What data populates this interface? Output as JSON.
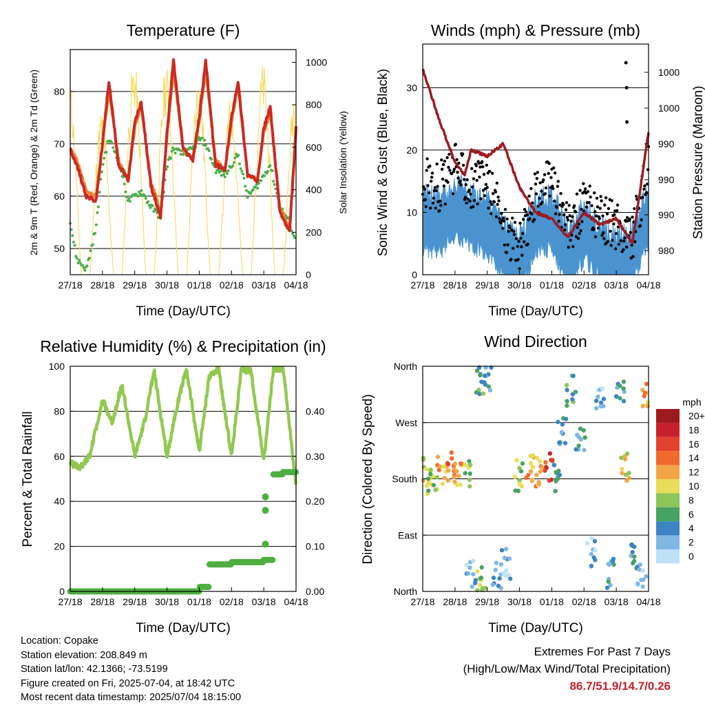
{
  "days": [
    "27/18",
    "28/18",
    "29/18",
    "30/18",
    "01/18",
    "02/18",
    "03/18",
    "04/18"
  ],
  "xlabel": "Time (Day/UTC)",
  "panels": {
    "temp": {
      "title": "Temperature (F)",
      "ylabel_left": "2m & 9m T (Red, Orange) & 2m Td (Green)",
      "ylabel_right": "Solar Insolation (Yellow)",
      "yticks_left": [
        "50",
        "60",
        "70",
        "80"
      ],
      "yticks_right": [
        "0",
        "200",
        "400",
        "600",
        "800",
        "1000"
      ]
    },
    "wind": {
      "title": "Winds (mph) & Pressure (mb)",
      "ylabel_left": "Sonic Wind & Gust (Blue, Black)",
      "ylabel_right": "Station Pressure (Maroon)",
      "yticks_left": [
        "0",
        "10",
        "20",
        "30"
      ],
      "yticks_right": [
        "980",
        "990",
        "990",
        "990",
        "1000",
        "1000"
      ]
    },
    "rh": {
      "title": "Relative Humidity (%) & Precipitation (in)",
      "ylabel_left": "Percent & Total Rainfall",
      "yticks_left": [
        "0",
        "20",
        "40",
        "60",
        "80",
        "100"
      ],
      "yticks_right": [
        "0.00",
        "0.10",
        "0.20",
        "0.30",
        "0.40"
      ]
    },
    "dir": {
      "title": "Wind Direction",
      "ylabel_left": "Direction (Colored By Speed)",
      "yticks_left": [
        "North",
        "East",
        "South",
        "West",
        "North"
      ],
      "legend_title": "mph",
      "legend_labels": [
        "20+",
        "18",
        "16",
        "14",
        "12",
        "10",
        "8",
        "6",
        "4",
        "2",
        "0"
      ],
      "legend_colors": [
        "#9e1a1f",
        "#c8202a",
        "#e2412c",
        "#f06a2e",
        "#f4a646",
        "#e7dd58",
        "#8cc55a",
        "#47a264",
        "#3d84c2",
        "#7fb7e2",
        "#bfe1f7"
      ]
    }
  },
  "chart_data": [
    {
      "type": "line",
      "title": "Temperature (F)",
      "xlabel": "Time (Day/UTC)",
      "ylabel": "2m & 9m T (Red, Orange) & 2m Td (Green)",
      "y2label": "Solar Insolation (Yellow)",
      "ylim": [
        45,
        88
      ],
      "y2lim": [
        0,
        1060
      ],
      "x": [
        0,
        0.2,
        0.5,
        0.8,
        1.0,
        1.2,
        1.5,
        1.8,
        2.0,
        2.2,
        2.5,
        2.8,
        3.0,
        3.2,
        3.5,
        3.8,
        4.0,
        4.2,
        4.5,
        4.8,
        5.0,
        5.2,
        5.5,
        5.8,
        6.0,
        6.2,
        6.5,
        6.8,
        7.0
      ],
      "series": [
        {
          "name": "2m T",
          "values": [
            69,
            66,
            60,
            59,
            70,
            82,
            66,
            63,
            74,
            78,
            62,
            56,
            72,
            86,
            69,
            67,
            75,
            86,
            66,
            65,
            75,
            82,
            64,
            63,
            73,
            77,
            57,
            53,
            73
          ]
        },
        {
          "name": "9m T",
          "values": [
            69,
            67,
            61,
            60,
            70,
            80,
            67,
            63,
            73,
            77,
            63,
            57,
            71,
            84,
            69,
            67,
            74,
            84,
            67,
            65,
            74,
            81,
            64,
            63,
            72,
            76,
            58,
            54,
            72
          ]
        },
        {
          "name": "2m Td",
          "values": [
            55,
            48,
            46,
            54,
            66,
            71,
            67,
            59,
            60,
            61,
            58,
            56,
            66,
            69,
            68,
            69,
            71,
            70,
            65,
            64,
            66,
            68,
            60,
            62,
            64,
            66,
            58,
            55,
            51
          ]
        },
        {
          "name": "Solar Insolation",
          "peaks": [
            930,
            780,
            1020,
            1000,
            960,
            840,
            1000,
            920
          ]
        }
      ]
    },
    {
      "type": "line",
      "title": "Winds (mph) & Pressure (mb)",
      "xlabel": "Time (Day/UTC)",
      "ylabel": "Sonic Wind & Gust (Blue, Black)",
      "y2label": "Station Pressure (Maroon)",
      "ylim": [
        0,
        37
      ],
      "x": [
        0,
        0.5,
        1.0,
        1.3,
        1.5,
        2.0,
        2.5,
        3.0,
        3.5,
        4.0,
        4.5,
        5.0,
        5.5,
        6.0,
        6.5,
        7.0
      ],
      "series": [
        {
          "name": "Wind",
          "values": [
            9,
            8,
            11,
            10,
            9,
            8,
            4,
            2,
            8,
            9,
            3,
            7,
            4,
            2,
            3,
            10
          ]
        },
        {
          "name": "Gust",
          "values": [
            15,
            14,
            17,
            16,
            14,
            15,
            8,
            4,
            13,
            15,
            7,
            11,
            9,
            8,
            6,
            17
          ]
        },
        {
          "name": "Station Pressure",
          "values": [
            33,
            25,
            18,
            16,
            20,
            19,
            21,
            14,
            10,
            9,
            6,
            10,
            8,
            9,
            5,
            23
          ]
        }
      ]
    },
    {
      "type": "line",
      "title": "Relative Humidity (%) & Precipitation (in)",
      "xlabel": "Time (Day/UTC)",
      "ylabel": "Percent & Total Rainfall",
      "ylim": [
        0,
        100
      ],
      "y2lim": [
        0,
        0.5
      ],
      "x": [
        0,
        0.3,
        0.6,
        1.0,
        1.3,
        1.6,
        2.0,
        2.3,
        2.6,
        3.0,
        3.3,
        3.6,
        4.0,
        4.3,
        4.6,
        5.0,
        5.3,
        5.6,
        6.0,
        6.3,
        6.6,
        7.0
      ],
      "series": [
        {
          "name": "Relative Humidity",
          "values": [
            57,
            55,
            60,
            85,
            75,
            92,
            60,
            75,
            98,
            60,
            82,
            99,
            62,
            95,
            99,
            60,
            98,
            98,
            58,
            99,
            99,
            47
          ]
        },
        {
          "name": "Total Precipitation",
          "values": [
            0,
            0,
            0,
            0,
            0,
            0,
            0,
            0,
            0,
            0,
            0,
            0,
            0.01,
            0.06,
            0.06,
            0.065,
            0.065,
            0.065,
            0.07,
            0.26,
            0.265,
            0.265
          ]
        }
      ]
    },
    {
      "type": "scatter",
      "title": "Wind Direction",
      "xlabel": "Time (Day/UTC)",
      "ylabel": "Direction (Colored By Speed)",
      "ylim": [
        0,
        360
      ],
      "points": [
        {
          "x": 0.1,
          "y": 190,
          "speed": 10
        },
        {
          "x": 0.3,
          "y": 180,
          "speed": 8
        },
        {
          "x": 0.6,
          "y": 195,
          "speed": 12
        },
        {
          "x": 0.9,
          "y": 200,
          "speed": 14
        },
        {
          "x": 1.1,
          "y": 190,
          "speed": 12
        },
        {
          "x": 1.4,
          "y": 185,
          "speed": 8
        },
        {
          "x": 1.5,
          "y": 30,
          "speed": 2
        },
        {
          "x": 1.8,
          "y": 15,
          "speed": 8
        },
        {
          "x": 1.8,
          "y": 340,
          "speed": 6
        },
        {
          "x": 2.0,
          "y": 345,
          "speed": 4
        },
        {
          "x": 2.3,
          "y": 30,
          "speed": 2
        },
        {
          "x": 2.6,
          "y": 45,
          "speed": 2
        },
        {
          "x": 3.0,
          "y": 185,
          "speed": 8
        },
        {
          "x": 3.3,
          "y": 195,
          "speed": 12
        },
        {
          "x": 3.6,
          "y": 190,
          "speed": 12
        },
        {
          "x": 3.9,
          "y": 200,
          "speed": 16
        },
        {
          "x": 4.1,
          "y": 180,
          "speed": 6
        },
        {
          "x": 4.3,
          "y": 260,
          "speed": 4
        },
        {
          "x": 4.6,
          "y": 320,
          "speed": 6
        },
        {
          "x": 4.9,
          "y": 240,
          "speed": 4
        },
        {
          "x": 5.2,
          "y": 60,
          "speed": 2
        },
        {
          "x": 5.5,
          "y": 300,
          "speed": 2
        },
        {
          "x": 5.8,
          "y": 30,
          "speed": 4
        },
        {
          "x": 6.1,
          "y": 320,
          "speed": 4
        },
        {
          "x": 6.3,
          "y": 200,
          "speed": 10
        },
        {
          "x": 6.5,
          "y": 60,
          "speed": 4
        },
        {
          "x": 6.8,
          "y": 20,
          "speed": 2
        },
        {
          "x": 6.95,
          "y": 320,
          "speed": 12
        }
      ]
    }
  ],
  "info": {
    "location": "Location: Copake",
    "elevation": "Station elevation: 208.849 m",
    "latlon": "Station lat/lon: 42.1366; -73.5199",
    "created": "Figure created on Fri, 2025-07-04, at 18:42 UTC",
    "recent": "Most recent data timestamp: 2025/07/04 18:15:00"
  },
  "extremes": {
    "line1": "Extremes For Past 7 Days",
    "line2": "(High/Low/Max Wind/Total Precipitation)",
    "values": "86.7/51.9/14.7/0.26"
  }
}
